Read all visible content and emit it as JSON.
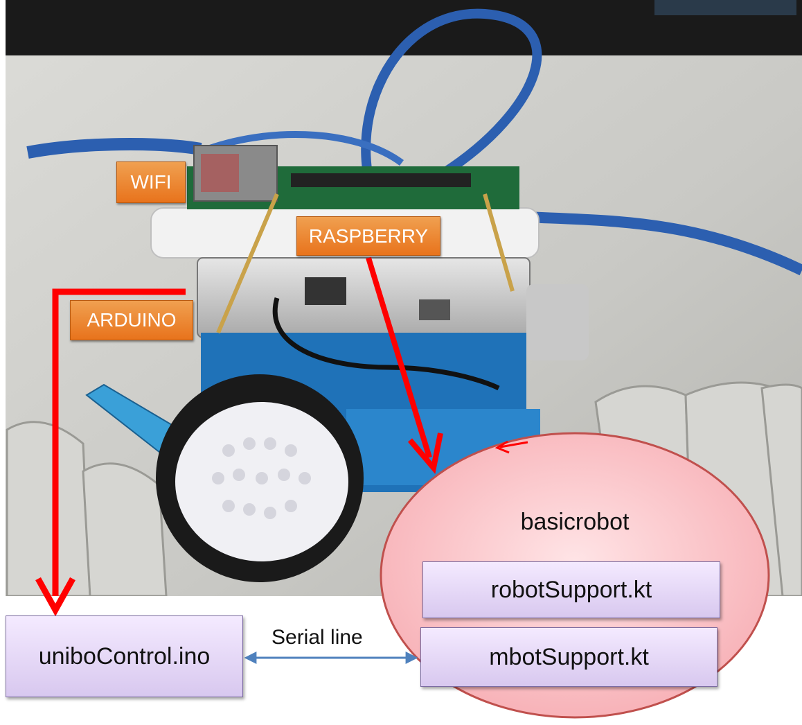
{
  "labels": {
    "wifi": "WIFI",
    "raspberry": "RASPBERRY",
    "arduino": "ARDUINO"
  },
  "basicrobot": {
    "title": "basicrobot",
    "robot_support": "robotSupport.kt",
    "mbot_support": "mbotSupport.kt"
  },
  "control": {
    "file": "uniboControl.ino"
  },
  "link": {
    "label": "Serial line"
  },
  "colors": {
    "tag_orange": "#e8731c",
    "box_purple": "#d8c8ef",
    "ellipse_pink": "#f9b8bd",
    "arrow_red": "#ff0000",
    "serial_blue": "#4f81bd"
  }
}
